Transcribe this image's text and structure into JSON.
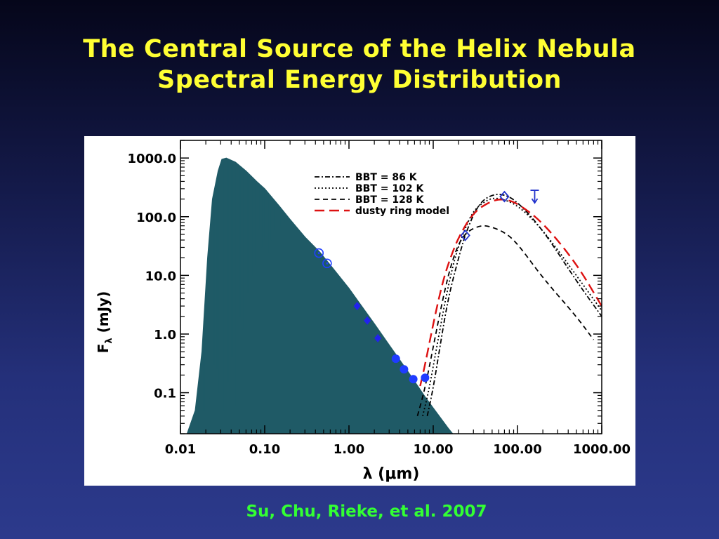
{
  "slide": {
    "title_line1": "The Central Source of the Helix Nebula",
    "title_line2": "Spectral Energy Distribution",
    "credit": "Su, Chu, Rieke, et al. 2007"
  },
  "chart_data": {
    "type": "line",
    "xlabel": "λ (μm)",
    "ylabel_main": "F",
    "ylabel_sub": "λ",
    "ylabel_rest": " (mJy)",
    "xscale": "log",
    "yscale": "log",
    "xlim": [
      0.01,
      1000
    ],
    "ylim": [
      0.02,
      2000
    ],
    "x_ticks": [
      0.01,
      0.1,
      1,
      10,
      100,
      1000
    ],
    "x_tick_labels": [
      "0.01",
      "0.10",
      "1.00",
      "10.00",
      "100.00",
      "1000.00"
    ],
    "y_ticks": [
      0.1,
      1,
      10,
      100,
      1000
    ],
    "y_tick_labels": [
      "0.1",
      "1.0",
      "10.0",
      "100.0",
      "1000.0"
    ],
    "legend_position": "top-center",
    "legend": [
      {
        "label": "BBT = 86  K",
        "dash": "dashdot",
        "color": "#000000"
      },
      {
        "label": "BBT = 102 K",
        "dash": "dotted",
        "color": "#000000"
      },
      {
        "label": "BBT = 128 K",
        "dash": "dashed",
        "color": "#000000"
      },
      {
        "label": "dusty ring model",
        "dash": "longdash",
        "color": "#dd1111"
      }
    ],
    "series": [
      {
        "name": "BBT = 86  K",
        "style": "dashdot",
        "color": "#000000",
        "points": [
          [
            8.5,
            0.04
          ],
          [
            10,
            0.12
          ],
          [
            12,
            0.6
          ],
          [
            15,
            4
          ],
          [
            20,
            20
          ],
          [
            25,
            60
          ],
          [
            35,
            170
          ],
          [
            50,
            240
          ],
          [
            70,
            240
          ],
          [
            100,
            180
          ],
          [
            200,
            60
          ],
          [
            500,
            8
          ],
          [
            1000,
            2
          ]
        ]
      },
      {
        "name": "BBT = 102 K",
        "style": "dotted",
        "color": "#000000",
        "points": [
          [
            7.5,
            0.04
          ],
          [
            9,
            0.12
          ],
          [
            11,
            0.6
          ],
          [
            14,
            4
          ],
          [
            18,
            20
          ],
          [
            23,
            55
          ],
          [
            30,
            130
          ],
          [
            45,
            200
          ],
          [
            60,
            210
          ],
          [
            100,
            160
          ],
          [
            200,
            60
          ],
          [
            500,
            10
          ],
          [
            1000,
            2.5
          ]
        ]
      },
      {
        "name": "BBT = 128 K",
        "style": "dashed",
        "color": "#000000",
        "points": [
          [
            6.5,
            0.04
          ],
          [
            8,
            0.12
          ],
          [
            10,
            0.6
          ],
          [
            13,
            4
          ],
          [
            16,
            14
          ],
          [
            20,
            35
          ],
          [
            25,
            55
          ],
          [
            35,
            70
          ],
          [
            45,
            70
          ],
          [
            70,
            55
          ],
          [
            100,
            35
          ],
          [
            200,
            9
          ],
          [
            500,
            2
          ],
          [
            800,
            0.8
          ]
        ]
      },
      {
        "name": "dusty ring model",
        "style": "longdash",
        "color": "#dd1111",
        "points": [
          [
            7,
            0.13
          ],
          [
            8,
            0.3
          ],
          [
            10,
            1.5
          ],
          [
            13,
            8
          ],
          [
            16,
            20
          ],
          [
            20,
            45
          ],
          [
            30,
            120
          ],
          [
            50,
            190
          ],
          [
            70,
            200
          ],
          [
            100,
            170
          ],
          [
            200,
            80
          ],
          [
            500,
            16
          ],
          [
            1000,
            3
          ]
        ]
      }
    ],
    "stellar_spectrum": {
      "name": "stellar photosphere model",
      "color": "#1f5a66",
      "envelope": [
        [
          0.012,
          0.02
        ],
        [
          0.015,
          0.05
        ],
        [
          0.018,
          0.5
        ],
        [
          0.021,
          20
        ],
        [
          0.024,
          200
        ],
        [
          0.028,
          600
        ],
        [
          0.031,
          950
        ],
        [
          0.035,
          1000
        ],
        [
          0.045,
          850
        ],
        [
          0.06,
          600
        ],
        [
          0.08,
          400
        ],
        [
          0.1,
          300
        ],
        [
          0.15,
          150
        ],
        [
          0.2,
          90
        ],
        [
          0.3,
          45
        ],
        [
          0.45,
          25
        ],
        [
          0.6,
          15
        ],
        [
          1,
          6
        ],
        [
          2,
          1.5
        ],
        [
          3,
          0.65
        ],
        [
          5,
          0.23
        ],
        [
          8,
          0.085
        ],
        [
          10,
          0.055
        ],
        [
          15,
          0.025
        ],
        [
          17,
          0.02
        ]
      ],
      "absorption_lines": [
        [
          0.016,
          0.02
        ],
        [
          0.019,
          0.05
        ],
        [
          0.022,
          0.08
        ],
        [
          0.025,
          0.3
        ],
        [
          0.027,
          0.25
        ],
        [
          0.029,
          0.1
        ],
        [
          0.033,
          0.05
        ],
        [
          0.037,
          0.15
        ],
        [
          0.041,
          0.4
        ],
        [
          0.046,
          0.06
        ],
        [
          0.051,
          2
        ],
        [
          0.055,
          1.2
        ],
        [
          0.058,
          8
        ],
        [
          0.063,
          5
        ],
        [
          0.066,
          20
        ],
        [
          0.072,
          10
        ],
        [
          0.078,
          15
        ],
        [
          0.085,
          60
        ],
        [
          0.092,
          30
        ],
        [
          0.1,
          40
        ],
        [
          0.11,
          25
        ],
        [
          0.12,
          40
        ],
        [
          0.13,
          60
        ],
        [
          0.155,
          70
        ],
        [
          0.17,
          80
        ]
      ]
    },
    "photometry": [
      {
        "name": "open circles",
        "marker": "open-circle",
        "color": "#2040ff",
        "points": [
          [
            0.44,
            24
          ],
          [
            0.55,
            16
          ]
        ]
      },
      {
        "name": "diamonds",
        "marker": "diamond",
        "color": "#2222ee",
        "points": [
          [
            1.25,
            3
          ],
          [
            1.65,
            1.7
          ],
          [
            2.2,
            0.85
          ]
        ]
      },
      {
        "name": "filled circles",
        "marker": "filled-circle",
        "color": "#1f3cff",
        "points": [
          [
            3.6,
            0.38
          ],
          [
            4.5,
            0.25
          ],
          [
            5.8,
            0.17
          ],
          [
            8,
            0.18
          ]
        ]
      },
      {
        "name": "open diamonds",
        "marker": "open-diamond",
        "color": "#2233cc",
        "points": [
          [
            24,
            48
          ],
          [
            70,
            220
          ]
        ]
      },
      {
        "name": "upper limit",
        "marker": "upper-limit",
        "color": "#2233cc",
        "points": [
          [
            160,
            220
          ]
        ]
      }
    ]
  }
}
